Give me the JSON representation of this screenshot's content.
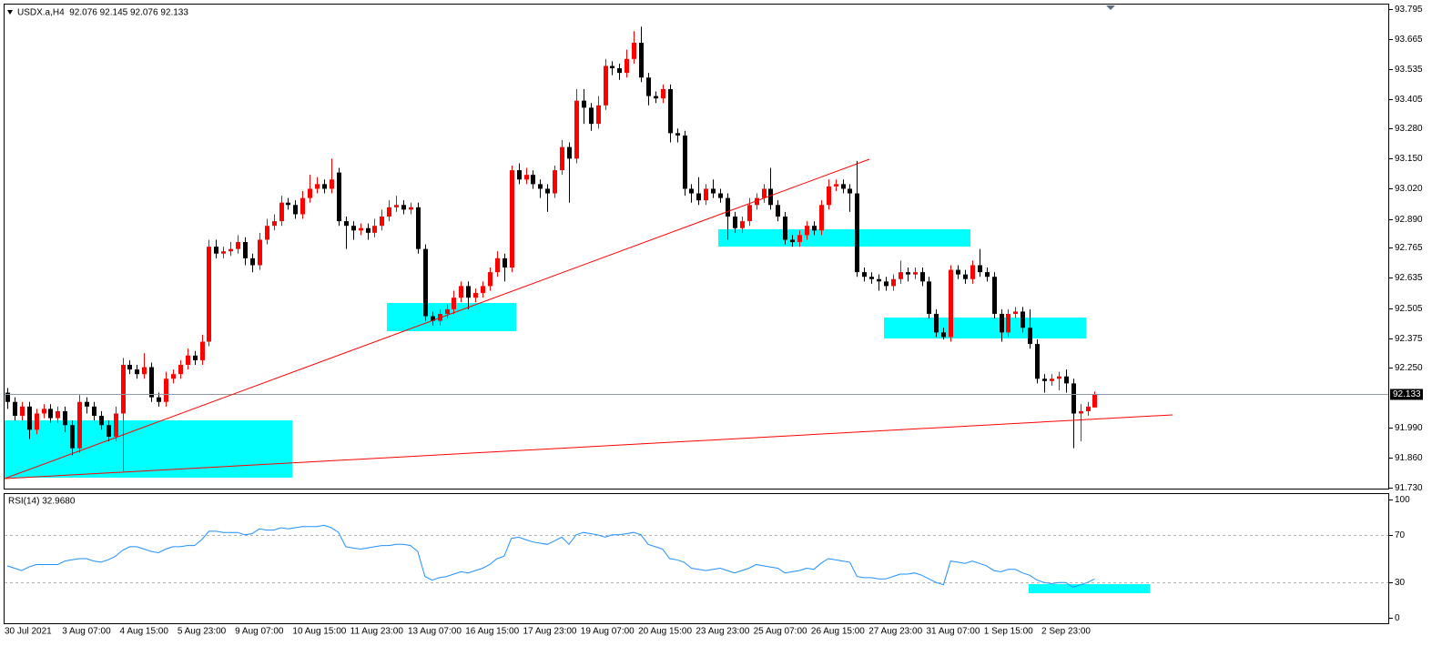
{
  "chart_data": [
    {
      "type": "candlestick",
      "title": "USDX.a,H4  92.076 92.145 92.076 92.133",
      "up_color": "#ff0000",
      "down_color": "#000000",
      "last_price": 92.133,
      "ylim": [
        91.722,
        93.815
      ],
      "yticks": [
        93.795,
        93.665,
        93.535,
        93.405,
        {
          "value": 93.28,
          "label": "93.280"
        },
        {
          "value": 93.15,
          "label": "93.150"
        },
        {
          "value": 93.02,
          "label": "93.020"
        },
        {
          "value": 92.89,
          "label": "92.890"
        },
        92.765,
        92.635,
        92.505,
        92.375,
        {
          "value": 92.25,
          "label": "92.250"
        },
        {
          "value": 91.99,
          "label": "91.990"
        },
        {
          "value": 91.86,
          "label": "91.860"
        },
        {
          "value": 91.73,
          "label": "91.730"
        }
      ],
      "categories": [
        "30 Jul 2021",
        null,
        null,
        null,
        null,
        null,
        null,
        null,
        "3 Aug 07:00",
        null,
        null,
        null,
        null,
        null,
        null,
        null,
        "4 Aug 15:00",
        null,
        null,
        null,
        null,
        null,
        null,
        null,
        "5 Aug 23:00",
        null,
        null,
        null,
        null,
        null,
        null,
        null,
        "9 Aug 07:00",
        null,
        null,
        null,
        null,
        null,
        null,
        null,
        "10 Aug 15:00",
        null,
        null,
        null,
        null,
        null,
        null,
        null,
        "11 Aug 23:00",
        null,
        null,
        null,
        null,
        null,
        null,
        null,
        "13 Aug 07:00",
        null,
        null,
        null,
        null,
        null,
        null,
        null,
        "16 Aug 15:00",
        null,
        null,
        null,
        null,
        null,
        null,
        null,
        "17 Aug 23:00",
        null,
        null,
        null,
        null,
        null,
        null,
        null,
        "19 Aug 07:00",
        null,
        null,
        null,
        null,
        null,
        null,
        null,
        "20 Aug 15:00",
        null,
        null,
        null,
        null,
        null,
        null,
        null,
        "23 Aug 23:00",
        null,
        null,
        null,
        null,
        null,
        null,
        null,
        "25 Aug 07:00",
        null,
        null,
        null,
        null,
        null,
        null,
        null,
        "26 Aug 15:00",
        null,
        null,
        null,
        null,
        null,
        null,
        null,
        "27 Aug 23:00",
        null,
        null,
        null,
        null,
        null,
        null,
        null,
        "31 Aug 07:00",
        null,
        null,
        null,
        null,
        null,
        null,
        null,
        "1 Sep 15:00",
        null,
        null,
        null,
        null,
        null,
        null,
        null,
        "2 Sep 23:00",
        null,
        null,
        null,
        null,
        null,
        null,
        null
      ],
      "open": [
        92.14,
        92.1,
        92.04,
        92.08,
        91.98,
        92.05,
        92.07,
        92.03,
        92.06,
        92.0,
        91.9,
        92.1,
        92.08,
        92.04,
        92.0,
        91.95,
        92.05,
        92.26,
        92.24,
        92.22,
        92.25,
        92.12,
        92.1,
        92.2,
        92.22,
        92.26,
        92.3,
        92.28,
        92.36,
        92.77,
        92.74,
        92.75,
        92.76,
        92.79,
        92.72,
        92.69,
        92.8,
        92.86,
        92.88,
        92.96,
        92.95,
        92.91,
        92.98,
        93.02,
        93.04,
        93.02,
        93.09,
        92.88,
        92.86,
        92.84,
        92.85,
        92.83,
        92.86,
        92.9,
        92.94,
        92.95,
        92.93,
        92.94,
        92.76,
        92.47,
        92.45,
        92.48,
        92.5,
        92.55,
        92.6,
        92.55,
        92.57,
        92.6,
        92.66,
        92.72,
        92.68,
        93.1,
        93.06,
        93.08,
        93.04,
        93.02,
        93.0,
        93.1,
        93.2,
        93.15,
        93.4,
        93.37,
        93.3,
        93.38,
        93.55,
        93.54,
        93.52,
        93.58,
        93.65,
        93.5,
        93.42,
        93.41,
        93.45,
        93.26,
        93.25,
        93.02,
        93.0,
        92.97,
        93.02,
        93.0,
        92.98,
        92.9,
        92.85,
        92.88,
        92.95,
        92.98,
        93.02,
        92.95,
        92.9,
        92.8,
        92.79,
        92.82,
        92.86,
        92.84,
        92.95,
        93.03,
        93.04,
        93.02,
        93.0,
        92.66,
        92.64,
        92.63,
        92.62,
        92.6,
        92.63,
        92.66,
        92.65,
        92.66,
        92.62,
        92.48,
        92.4,
        92.38,
        92.67,
        92.65,
        92.63,
        92.69,
        92.66,
        92.64,
        92.48,
        92.4,
        92.48,
        92.49,
        92.42,
        92.35,
        92.2,
        92.19,
        92.2,
        92.21,
        92.18,
        92.05,
        92.06,
        92.076
      ],
      "high": [
        92.16,
        92.12,
        92.1,
        92.1,
        92.07,
        92.09,
        92.09,
        92.08,
        92.08,
        92.02,
        92.13,
        92.12,
        92.1,
        92.06,
        92.02,
        92.08,
        92.29,
        92.28,
        92.26,
        92.31,
        92.27,
        92.14,
        92.23,
        92.24,
        92.28,
        92.33,
        92.32,
        92.39,
        92.8,
        92.8,
        92.77,
        92.79,
        92.82,
        92.81,
        92.74,
        92.83,
        92.89,
        92.91,
        92.99,
        92.98,
        92.97,
        93.01,
        93.08,
        93.07,
        93.06,
        93.15,
        93.11,
        92.9,
        92.88,
        92.87,
        92.87,
        92.89,
        92.93,
        92.97,
        92.99,
        92.97,
        92.96,
        92.96,
        92.78,
        92.49,
        92.5,
        92.52,
        92.58,
        92.62,
        92.62,
        92.59,
        92.62,
        92.68,
        92.75,
        92.74,
        93.12,
        93.13,
        93.11,
        93.1,
        93.06,
        93.04,
        93.12,
        93.23,
        93.22,
        93.45,
        93.45,
        93.39,
        93.42,
        93.58,
        93.57,
        93.56,
        93.62,
        93.7,
        93.72,
        93.52,
        93.44,
        93.47,
        93.47,
        93.28,
        93.27,
        93.04,
        93.07,
        93.04,
        93.06,
        93.02,
        93.0,
        92.92,
        92.9,
        92.98,
        93.0,
        93.04,
        93.11,
        92.97,
        92.92,
        92.82,
        92.84,
        92.88,
        92.88,
        92.97,
        93.06,
        93.06,
        93.06,
        93.04,
        93.14,
        92.68,
        92.66,
        92.65,
        92.64,
        92.65,
        92.71,
        92.68,
        92.68,
        92.68,
        92.64,
        92.5,
        92.42,
        92.69,
        92.69,
        92.67,
        92.71,
        92.76,
        92.68,
        92.66,
        92.5,
        92.5,
        92.51,
        92.51,
        92.5,
        92.37,
        92.22,
        92.22,
        92.23,
        92.24,
        92.2,
        92.09,
        92.1,
        92.145
      ],
      "low": [
        92.07,
        92.02,
        92.02,
        91.94,
        91.96,
        92.03,
        92.01,
        92.01,
        91.97,
        91.87,
        91.88,
        92.05,
        92.02,
        91.98,
        91.93,
        91.93,
        91.8,
        92.22,
        92.2,
        92.2,
        92.1,
        92.08,
        92.08,
        92.18,
        92.2,
        92.24,
        92.26,
        92.26,
        92.34,
        92.72,
        92.72,
        92.73,
        92.74,
        92.69,
        92.66,
        92.67,
        92.78,
        92.84,
        92.86,
        92.93,
        92.89,
        92.89,
        92.96,
        93.0,
        93.0,
        93.0,
        92.86,
        92.76,
        92.8,
        92.82,
        92.8,
        92.81,
        92.84,
        92.88,
        92.92,
        92.91,
        92.91,
        92.74,
        92.45,
        92.43,
        92.43,
        92.46,
        92.48,
        92.53,
        92.5,
        92.53,
        92.55,
        92.58,
        92.64,
        92.62,
        92.66,
        93.04,
        93.04,
        93.02,
        92.98,
        92.92,
        92.98,
        93.08,
        92.96,
        93.13,
        93.3,
        93.27,
        93.28,
        93.36,
        93.51,
        93.49,
        93.5,
        93.56,
        93.48,
        93.38,
        93.39,
        93.39,
        93.22,
        93.22,
        92.99,
        92.96,
        92.95,
        92.95,
        92.98,
        92.96,
        92.8,
        92.83,
        92.83,
        92.86,
        92.93,
        92.96,
        92.93,
        92.88,
        92.78,
        92.77,
        92.77,
        92.8,
        92.82,
        92.82,
        92.93,
        93.01,
        93.0,
        92.92,
        92.64,
        92.62,
        92.61,
        92.58,
        92.58,
        92.58,
        92.61,
        92.62,
        92.63,
        92.6,
        92.46,
        92.38,
        92.37,
        92.36,
        92.63,
        92.61,
        92.61,
        92.64,
        92.62,
        92.46,
        92.36,
        92.38,
        92.46,
        92.4,
        92.33,
        92.18,
        92.14,
        92.17,
        92.15,
        92.14,
        91.9,
        91.93,
        92.04,
        92.076
      ],
      "close": [
        92.1,
        92.04,
        92.08,
        91.98,
        92.05,
        92.07,
        92.03,
        92.06,
        92.0,
        91.9,
        92.1,
        92.08,
        92.04,
        92.0,
        91.95,
        92.05,
        92.26,
        92.24,
        92.22,
        92.25,
        92.12,
        92.1,
        92.2,
        92.22,
        92.26,
        92.3,
        92.28,
        92.36,
        92.77,
        92.74,
        92.75,
        92.76,
        92.79,
        92.72,
        92.69,
        92.8,
        92.86,
        92.88,
        92.96,
        92.95,
        92.91,
        92.98,
        93.02,
        93.04,
        93.02,
        93.06,
        92.88,
        92.86,
        92.84,
        92.85,
        92.83,
        92.86,
        92.9,
        92.94,
        92.95,
        92.93,
        92.94,
        92.76,
        92.47,
        92.45,
        92.48,
        92.5,
        92.55,
        92.6,
        92.55,
        92.57,
        92.6,
        92.66,
        92.72,
        92.68,
        93.1,
        93.06,
        93.08,
        93.04,
        93.02,
        93.0,
        93.1,
        93.2,
        93.15,
        93.4,
        93.37,
        93.3,
        93.38,
        93.55,
        93.54,
        93.52,
        93.58,
        93.65,
        93.5,
        93.42,
        93.41,
        93.45,
        93.26,
        93.25,
        93.02,
        93.0,
        92.97,
        93.02,
        93.0,
        92.98,
        92.9,
        92.85,
        92.88,
        92.95,
        92.98,
        93.02,
        92.95,
        92.9,
        92.8,
        92.79,
        92.82,
        92.86,
        92.84,
        92.95,
        93.03,
        93.04,
        93.02,
        93.0,
        92.66,
        92.64,
        92.63,
        92.62,
        92.6,
        92.63,
        92.66,
        92.65,
        92.66,
        92.62,
        92.48,
        92.4,
        92.38,
        92.67,
        92.65,
        92.63,
        92.69,
        92.66,
        92.64,
        92.48,
        92.4,
        92.48,
        92.49,
        92.42,
        92.35,
        92.2,
        92.19,
        92.2,
        92.21,
        92.18,
        92.05,
        92.06,
        92.08,
        92.133
      ]
    },
    {
      "type": "line",
      "title": "RSI(14) 32.9680",
      "color": "#1e90ff",
      "ylim": [
        -5,
        105
      ],
      "yticks": [
        100,
        70,
        30,
        0
      ],
      "levels": [
        70,
        30
      ],
      "values": [
        44,
        42,
        40,
        43,
        45,
        45,
        45,
        45,
        48,
        49,
        50,
        50,
        48,
        47,
        49,
        52,
        57,
        60,
        60,
        58,
        56,
        55,
        58,
        60,
        60,
        61,
        61,
        66,
        73,
        73,
        72,
        72,
        72,
        70,
        71,
        75,
        74,
        74,
        76,
        75,
        76,
        77,
        77,
        77,
        78,
        76,
        72,
        60,
        59,
        58,
        59,
        60,
        61,
        61,
        62,
        62,
        61,
        56,
        35,
        32,
        34,
        35,
        37,
        39,
        38,
        40,
        42,
        45,
        50,
        52,
        67,
        68,
        66,
        64,
        63,
        62,
        65,
        68,
        62,
        70,
        72,
        71,
        70,
        68,
        70,
        70,
        71,
        72,
        70,
        62,
        60,
        58,
        50,
        49,
        47,
        42,
        41,
        40,
        41,
        42,
        40,
        38,
        40,
        42,
        45,
        44,
        43,
        42,
        38,
        39,
        40,
        42,
        41,
        46,
        50,
        49,
        48,
        47,
        35,
        34,
        34,
        33,
        33,
        35,
        37,
        37,
        38,
        36,
        33,
        30,
        28,
        48,
        47,
        46,
        48,
        46,
        44,
        40,
        39,
        41,
        41,
        38,
        36,
        32,
        30,
        29,
        30,
        30,
        26,
        28,
        30,
        32.97
      ]
    }
  ]
}
